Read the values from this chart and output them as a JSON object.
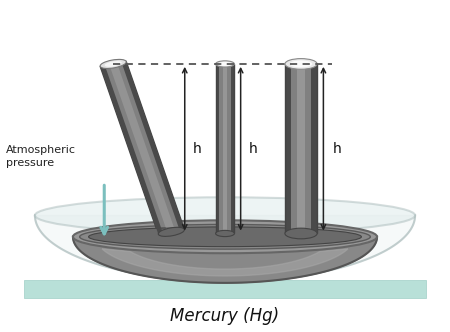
{
  "title": "Mercury (Hg)",
  "title_fontsize": 12,
  "atm_label": "Atmospheric\npressure",
  "h_label": "h",
  "bg_color": "#ffffff",
  "base_color": "#b8e0d8",
  "base_edge": "#a0cec6",
  "bowl_dark": "#666666",
  "bowl_mid": "#888888",
  "bowl_light": "#aaaaaa",
  "bowl_rim_color": "#999999",
  "mercury_surface": "#777777",
  "tube_dark": "#555555",
  "tube_mid": "#888888",
  "tube_light": "#bbbbbb",
  "tube_highlight": "#dddddd",
  "glass_bowl_color": "#ccdddd",
  "arrow_color": "#222222",
  "atm_arrow_color": "#7bbfbe",
  "dotted_color": "#555555"
}
